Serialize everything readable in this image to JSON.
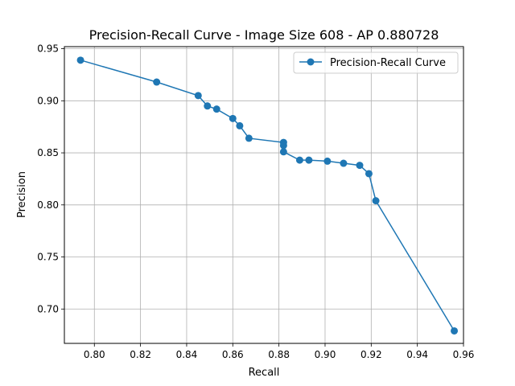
{
  "chart_data": {
    "type": "line",
    "title": "Precision-Recall Curve - Image Size 608 - AP 0.880728",
    "xlabel": "Recall",
    "ylabel": "Precision",
    "xlim": [
      0.787,
      0.96
    ],
    "ylim": [
      0.667,
      0.952
    ],
    "xticks": [
      0.8,
      0.82,
      0.84,
      0.86,
      0.88,
      0.9,
      0.92,
      0.94,
      0.96
    ],
    "xtick_labels": [
      "0.80",
      "0.82",
      "0.84",
      "0.86",
      "0.88",
      "0.90",
      "0.92",
      "0.94",
      "0.96"
    ],
    "yticks": [
      0.7,
      0.75,
      0.8,
      0.85,
      0.9,
      0.95
    ],
    "ytick_labels": [
      "0.70",
      "0.75",
      "0.80",
      "0.85",
      "0.90",
      "0.95"
    ],
    "grid": true,
    "legend_position": "top-right",
    "series": [
      {
        "name": "Precision-Recall Curve",
        "color": "#1f77b4",
        "marker": "circle",
        "points": [
          [
            0.794,
            0.939
          ],
          [
            0.827,
            0.918
          ],
          [
            0.845,
            0.905
          ],
          [
            0.849,
            0.895
          ],
          [
            0.853,
            0.892
          ],
          [
            0.86,
            0.883
          ],
          [
            0.863,
            0.876
          ],
          [
            0.867,
            0.864
          ],
          [
            0.882,
            0.86
          ],
          [
            0.882,
            0.857
          ],
          [
            0.882,
            0.851
          ],
          [
            0.889,
            0.843
          ],
          [
            0.893,
            0.843
          ],
          [
            0.901,
            0.842
          ],
          [
            0.908,
            0.84
          ],
          [
            0.915,
            0.838
          ],
          [
            0.919,
            0.83
          ],
          [
            0.922,
            0.804
          ],
          [
            0.956,
            0.679
          ]
        ]
      }
    ]
  }
}
